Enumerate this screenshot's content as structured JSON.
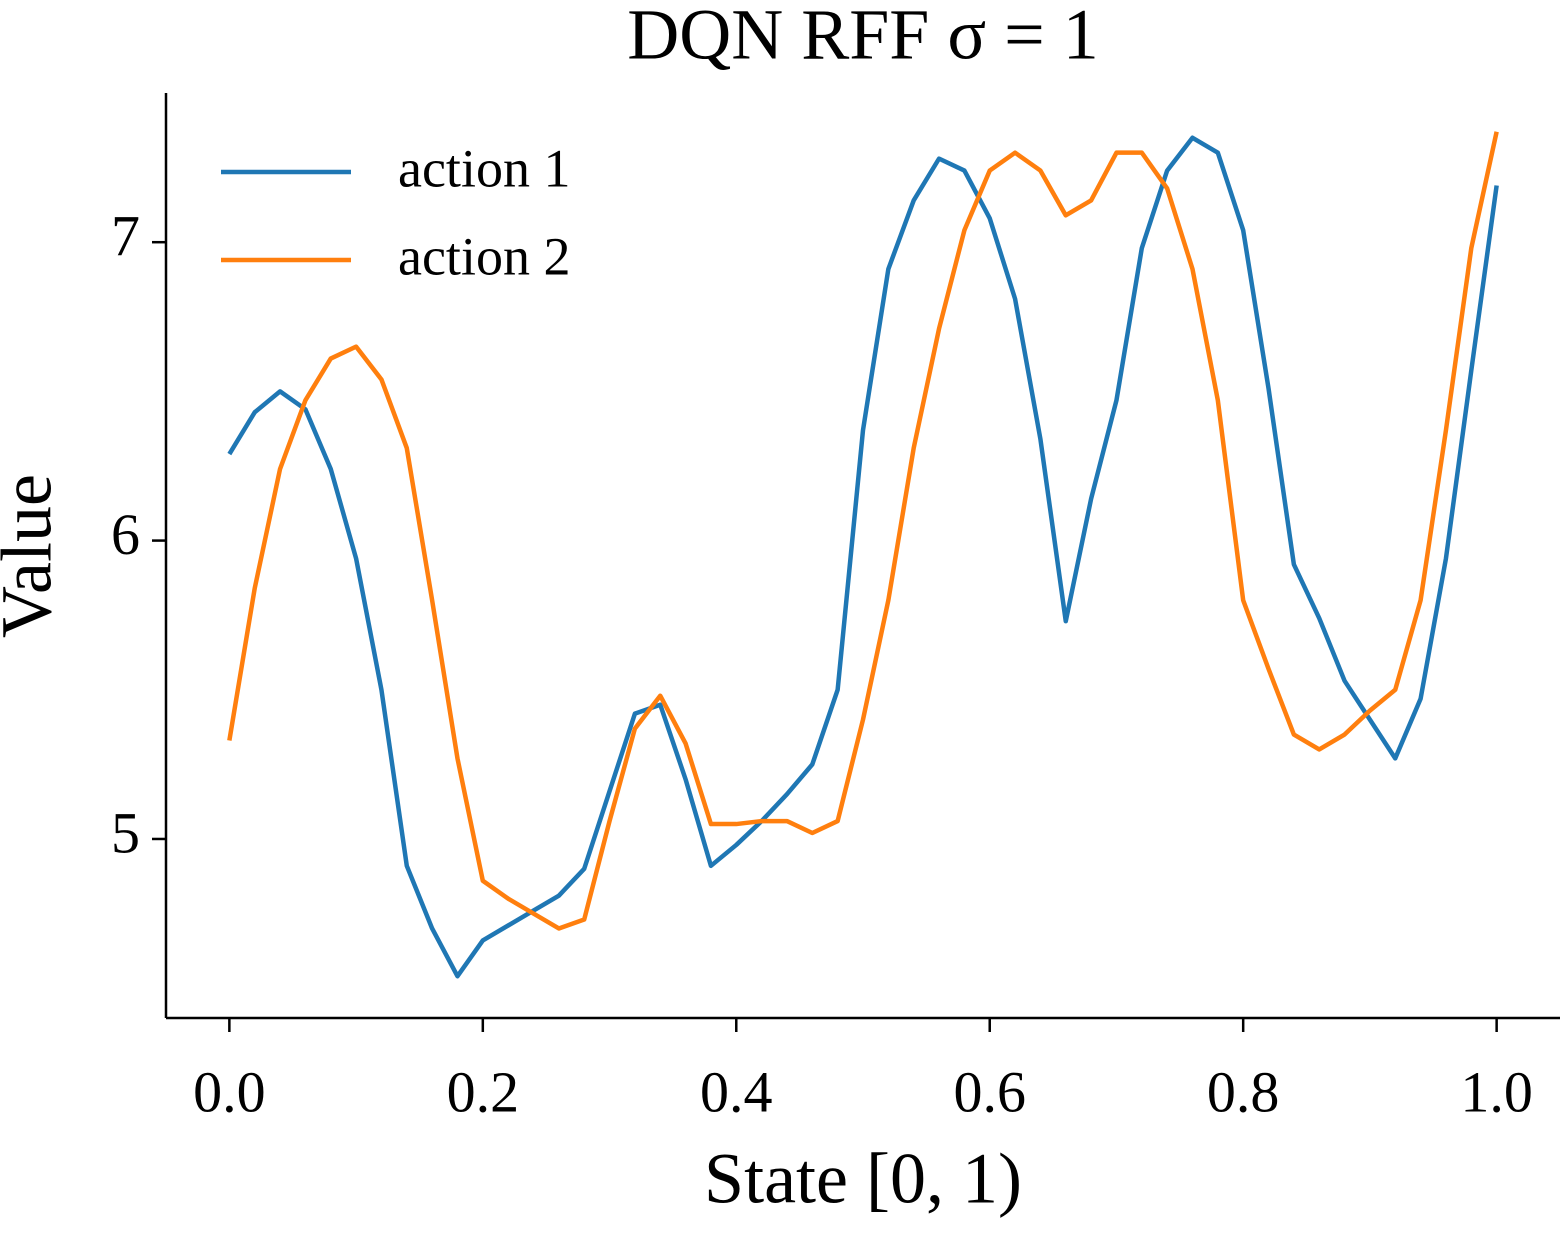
{
  "chart_data": {
    "type": "line",
    "title": "DQN RFF σ = 1",
    "xlabel": "State [0, 1)",
    "ylabel": "Value",
    "x": [
      0,
      0.02,
      0.04,
      0.06,
      0.08,
      0.1,
      0.12,
      0.14,
      0.16,
      0.18,
      0.2,
      0.22,
      0.24,
      0.26,
      0.28,
      0.3,
      0.32,
      0.34,
      0.36,
      0.38,
      0.4,
      0.42,
      0.44,
      0.46,
      0.48,
      0.5,
      0.52,
      0.54,
      0.56,
      0.58,
      0.6,
      0.62,
      0.64,
      0.66,
      0.68,
      0.7,
      0.72,
      0.74,
      0.76,
      0.78,
      0.8,
      0.82,
      0.84,
      0.86,
      0.88,
      0.9,
      0.92,
      0.94,
      0.96,
      0.98,
      1.0
    ],
    "series": [
      {
        "name": "action 1",
        "color": "#1f77b4",
        "values": [
          6.29,
          6.43,
          6.5,
          6.44,
          6.24,
          5.94,
          5.5,
          4.91,
          4.7,
          4.54,
          4.66,
          4.71,
          4.76,
          4.81,
          4.9,
          5.16,
          5.42,
          5.45,
          5.2,
          4.91,
          4.98,
          5.06,
          5.15,
          5.25,
          5.5,
          6.37,
          6.91,
          7.14,
          7.28,
          7.24,
          7.08,
          6.81,
          6.34,
          5.73,
          6.14,
          6.47,
          6.98,
          7.24,
          7.35,
          7.3,
          7.04,
          6.51,
          5.92,
          5.74,
          5.53,
          5.4,
          5.27,
          5.47,
          5.94,
          6.57,
          7.19
        ]
      },
      {
        "name": "action 2",
        "color": "#ff7f0e",
        "values": [
          5.33,
          5.84,
          6.24,
          6.47,
          6.61,
          6.65,
          6.54,
          6.31,
          5.8,
          5.27,
          4.86,
          4.8,
          4.75,
          4.7,
          4.73,
          5.06,
          5.37,
          5.48,
          5.32,
          5.05,
          5.05,
          5.06,
          5.06,
          5.02,
          5.06,
          5.4,
          5.8,
          6.31,
          6.71,
          7.04,
          7.24,
          7.3,
          7.24,
          7.09,
          7.14,
          7.3,
          7.3,
          7.18,
          6.91,
          6.47,
          5.8,
          5.57,
          5.35,
          5.3,
          5.35,
          5.43,
          5.5,
          5.8,
          6.37,
          6.98,
          7.37
        ]
      }
    ],
    "xlim": [
      -0.05,
      1.05
    ],
    "ylim": [
      4.4,
      7.5
    ],
    "xticks": [
      {
        "value": 0,
        "label": "0.0"
      },
      0.2,
      0.4,
      0.6,
      0.8,
      {
        "value": 1,
        "label": "1.0"
      }
    ],
    "yticks": [
      5,
      6,
      7
    ],
    "grid": false,
    "legend": "upper left"
  }
}
